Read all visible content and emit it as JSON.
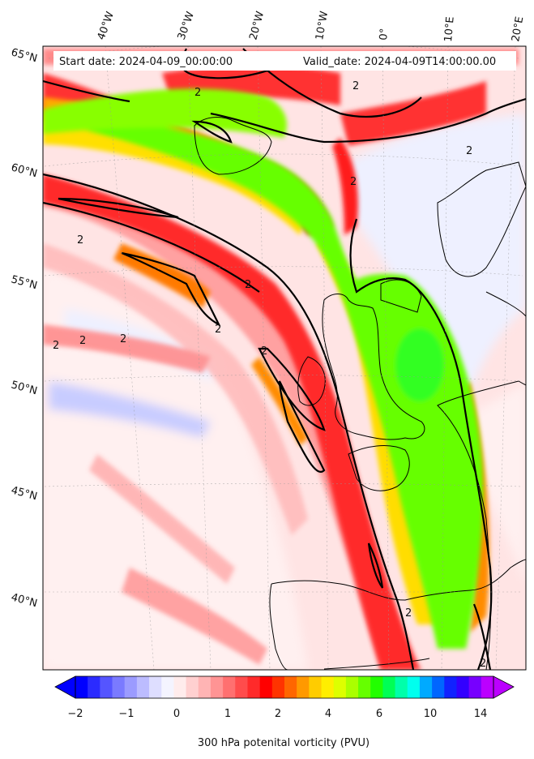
{
  "header": {
    "start_label": "Start date: 2024-04-09_00:00:00",
    "valid_label": "Valid_date: 2024-04-09T14:00:00.00"
  },
  "map": {
    "field": "300 hPa potential vorticity",
    "contour_level": "2",
    "lon_labels": [
      "40°W",
      "30°W",
      "20°W",
      "10°W",
      "0°",
      "10°E",
      "20°E"
    ],
    "lat_labels": [
      "65°N",
      "60°N",
      "55°N",
      "50°N",
      "45°N",
      "40°N"
    ],
    "palette": {
      "negative_deep": "#1a1aff",
      "negative_light": "#c8c8ff",
      "near_zero": "#f0f0ff",
      "pink_light": "#ffe6e6",
      "pink": "#ffb0b0",
      "red": "#ff2020",
      "orange": "#ff8c00",
      "yellow": "#ffe000",
      "green": "#66ff00",
      "cyan": "#00ffee",
      "blue": "#0070ff",
      "violet": "#cc00ff"
    }
  },
  "colorbar": {
    "ticks": [
      "−2",
      "−1",
      "0",
      "1",
      "2",
      "4",
      "6",
      "10",
      "14"
    ],
    "label": "300 hPa potenital vorticity (PVU)",
    "colors": [
      "#0000ff",
      "#2b2bff",
      "#5555ff",
      "#7a7aff",
      "#9b9bff",
      "#bcbcff",
      "#dedeff",
      "#f4f4ff",
      "#ffecec",
      "#ffd0d0",
      "#ffb4b4",
      "#ff9494",
      "#ff7070",
      "#ff4c4c",
      "#ff2a2a",
      "#ff0000",
      "#ff3300",
      "#ff6600",
      "#ff9900",
      "#ffcc00",
      "#ffee00",
      "#ddff00",
      "#aaff00",
      "#66ff00",
      "#22ff00",
      "#00ff55",
      "#00ffaa",
      "#00ffee",
      "#00aaff",
      "#0066ff",
      "#1122ff",
      "#3300ff",
      "#7700ff",
      "#bb00ff"
    ]
  }
}
